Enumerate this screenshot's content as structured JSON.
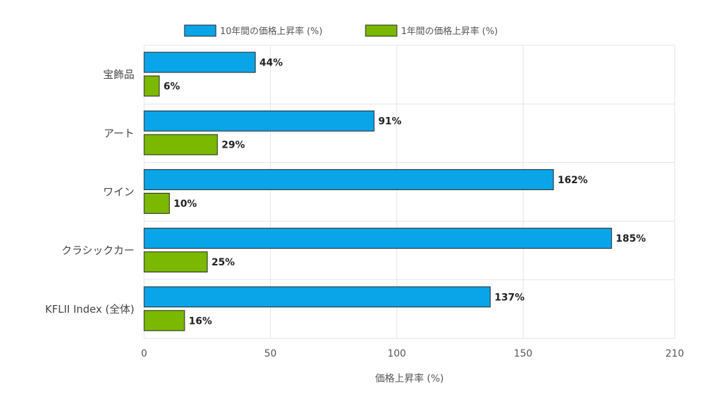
{
  "chart_data": {
    "type": "bar",
    "orientation": "horizontal",
    "categories": [
      "宝飾品",
      "アート",
      "ワイン",
      "クラシックカー",
      "KFLII Index (全体)"
    ],
    "series": [
      {
        "name": "10年間の価格上昇率 (%)",
        "values": [
          44,
          91,
          162,
          185,
          137
        ],
        "color": "#0aa5e8",
        "labels": [
          "44%",
          "91%",
          "162%",
          "185%",
          "137%"
        ]
      },
      {
        "name": "1年間の価格上昇率 (%)",
        "values": [
          6,
          29,
          10,
          25,
          16
        ],
        "color": "#7bb800",
        "labels": [
          "6%",
          "29%",
          "10%",
          "25%",
          "16%"
        ]
      }
    ],
    "xlabel": "価格上昇率 (%)",
    "ylabel": "",
    "xlim": [
      0,
      210
    ],
    "xticks": [
      0,
      50,
      100,
      150,
      210
    ],
    "xtick_labels": [
      "0",
      "50",
      "100",
      "150",
      "210"
    ],
    "grid": true,
    "legend_position": "top"
  }
}
